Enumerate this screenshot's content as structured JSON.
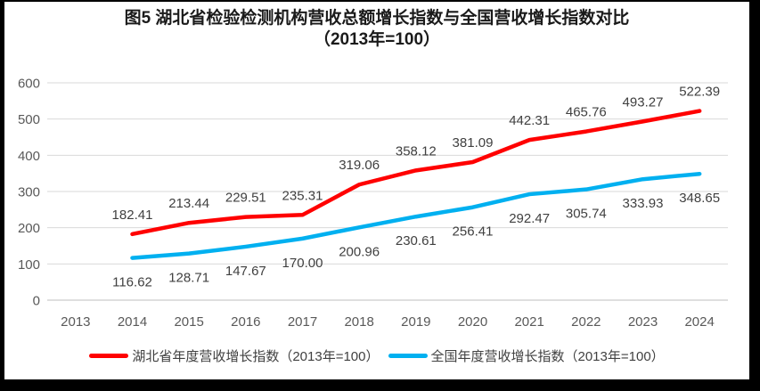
{
  "figure": {
    "title_line1": "图5 湖北省检验检测机构营收总额增长指数与全国营收增长指数对比",
    "title_line2": "（2013年=100）"
  },
  "chart_data": {
    "type": "line",
    "title": "图5 湖北省检验检测机构营收总额增长指数与全国营收增长指数对比（2013年=100）",
    "categories": [
      "2013",
      "2014",
      "2015",
      "2016",
      "2017",
      "2018",
      "2019",
      "2020",
      "2021",
      "2022",
      "2023",
      "2024"
    ],
    "series": [
      {
        "name": "湖北省年度营收增长指数（2013年=100）",
        "color": "#FF0000",
        "label_position": "above",
        "values": [
          null,
          182.41,
          213.44,
          229.51,
          235.31,
          319.06,
          358.12,
          381.09,
          442.31,
          465.76,
          493.27,
          522.39
        ]
      },
      {
        "name": "全国年度营收增长指数（2013年=100）",
        "color": "#00B0F0",
        "label_position": "below",
        "values": [
          null,
          116.62,
          128.71,
          147.67,
          170.0,
          200.96,
          230.61,
          256.41,
          292.47,
          305.74,
          333.93,
          348.65
        ]
      }
    ],
    "xlabel": "",
    "ylabel": "",
    "ylim": [
      0,
      600
    ],
    "ytick_step": 100,
    "yticks": [
      0,
      100,
      200,
      300,
      400,
      500,
      600
    ],
    "grid": true,
    "legend_position": "bottom",
    "data_label_decimals": 2,
    "colors": {
      "gridline": "#D9D9D9",
      "axis_line": "#BFBFBF",
      "axis_text": "#595959",
      "data_label_text": "#404040",
      "frame": "#000000",
      "background": "#FFFFFF"
    }
  }
}
